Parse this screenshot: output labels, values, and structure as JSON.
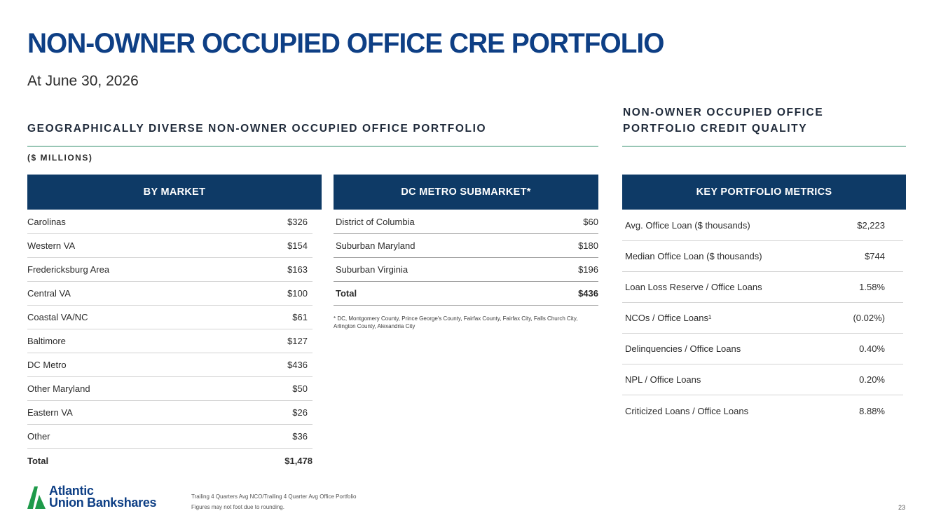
{
  "header": {
    "title": "NON-OWNER OCCUPIED OFFICE CRE PORTFOLIO",
    "subtitle": "At June 30, 2026"
  },
  "left_section": {
    "heading": "GEOGRAPHICALLY DIVERSE NON-OWNER OCCUPIED OFFICE PORTFOLIO",
    "units": "($ MILLIONS)"
  },
  "by_market": {
    "header": "BY MARKET",
    "rows": [
      {
        "label": "Carolinas",
        "value": "$326"
      },
      {
        "label": "Western VA",
        "value": "$154"
      },
      {
        "label": "Fredericksburg Area",
        "value": "$163"
      },
      {
        "label": "Central VA",
        "value": "$100"
      },
      {
        "label": "Coastal VA/NC",
        "value": "$61"
      },
      {
        "label": "Baltimore",
        "value": "$127"
      },
      {
        "label": "DC Metro",
        "value": "$436"
      },
      {
        "label": "Other Maryland",
        "value": "$50"
      },
      {
        "label": "Eastern VA",
        "value": "$26"
      },
      {
        "label": "Other",
        "value": "$36"
      },
      {
        "label": "Total",
        "value": "$1,478"
      }
    ]
  },
  "dc_metro": {
    "header": "DC METRO SUBMARKET*",
    "rows": [
      {
        "label": "District of Columbia",
        "value": "$60"
      },
      {
        "label": "Suburban Maryland",
        "value": "$180"
      },
      {
        "label": "Suburban Virginia",
        "value": "$196"
      },
      {
        "label": "Total",
        "value": "$436"
      }
    ],
    "footnote": "* DC, Montgomery County, Prince George's County, Fairfax County, Fairfax City, Falls Church City, Arlington County, Alexandria City"
  },
  "right_section": {
    "heading_line1": "NON-OWNER OCCUPIED OFFICE",
    "heading_line2": "PORTFOLIO CREDIT QUALITY"
  },
  "key_metrics": {
    "header": "KEY PORTFOLIO METRICS",
    "rows": [
      {
        "label": "Avg. Office Loan ($ thousands)",
        "value": "$2,223"
      },
      {
        "label": "Median Office Loan ($ thousands)",
        "value": "$744"
      },
      {
        "label": "Loan Loss Reserve / Office Loans",
        "value": "1.58%"
      },
      {
        "label": "NCOs / Office Loans¹",
        "value": "(0.02%)"
      },
      {
        "label": "Delinquencies / Office Loans",
        "value": "0.40%"
      },
      {
        "label": "NPL / Office Loans",
        "value": "0.20%"
      },
      {
        "label": "Criticized Loans / Office Loans",
        "value": "8.88%"
      }
    ]
  },
  "footer": {
    "logo_line1": "Atlantic",
    "logo_line2": "Union Bankshares",
    "note1": "Trailing 4 Quarters Avg NCO/Trailing 4 Quarter Avg Office Portfolio",
    "note2": "Figures may not foot due to rounding.",
    "page_number": "23"
  },
  "colors": {
    "title_blue": "#0e3f85",
    "table_header_navy": "#0e3a66",
    "rule_green": "#2e8b6a",
    "logo_green": "#1e9a4a"
  }
}
